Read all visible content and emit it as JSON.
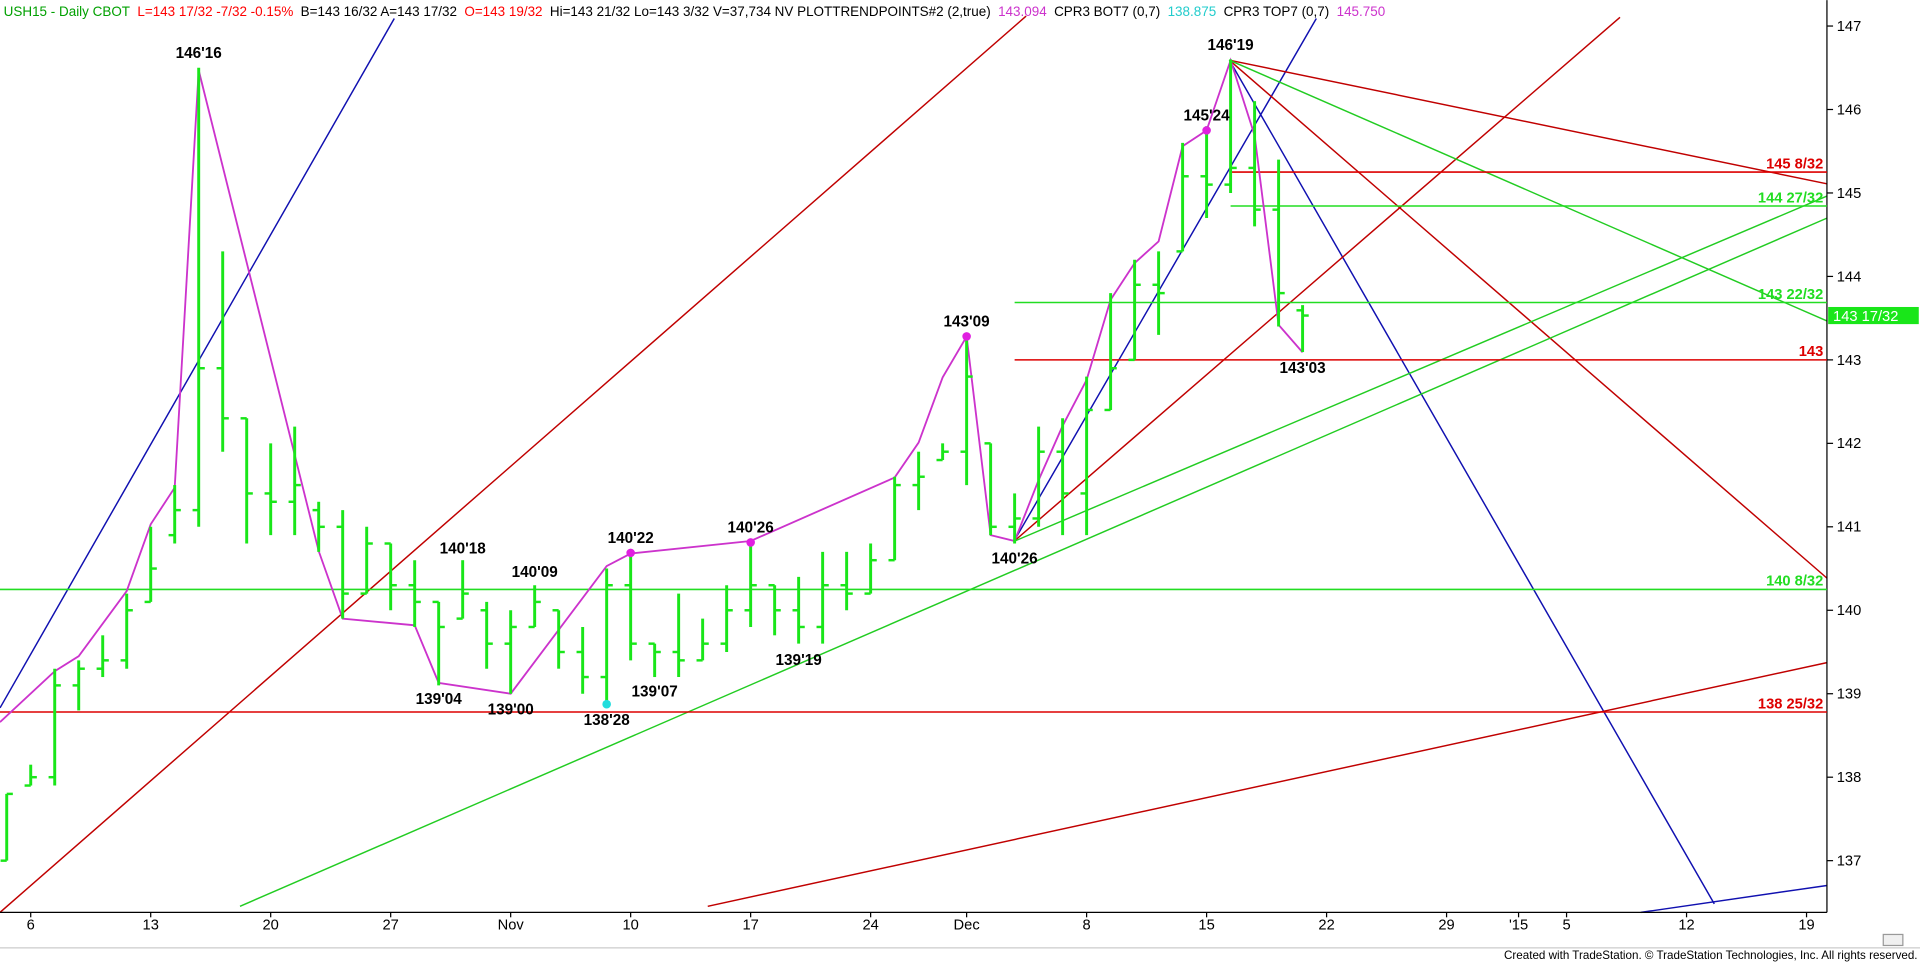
{
  "chart_data": {
    "type": "ohlc",
    "header": [
      {
        "text": "USH15 - Daily  CBOT",
        "color": "#00a000"
      },
      {
        "text": "L=143 17/32  -7/32  -0.15%",
        "color": "#ff0000"
      },
      {
        "text": "B=143 16/32  A=143 17/32",
        "color": "#000000"
      },
      {
        "text": "O=143 19/32",
        "color": "#ff0000"
      },
      {
        "text": "Hi=143 21/32  Lo=143 3/32  V=37,734  NV  PLOTTRENDPOINTS#2 (2,true)",
        "color": "#000000"
      },
      {
        "text": "143.094",
        "color": "#cc33cc"
      },
      {
        "text": "CPR3 BOT7 (0,7)",
        "color": "#000000"
      },
      {
        "text": "138.875",
        "color": "#22cccc"
      },
      {
        "text": "CPR3 TOP7 (0,7)",
        "color": "#000000"
      },
      {
        "text": "145.750",
        "color": "#cc33cc"
      }
    ],
    "footer": "Created with TradeStation. © TradeStation Technologies, Inc. All rights reserved.",
    "color": "#19e619",
    "xlim": [
      -1.28,
      74.85
    ],
    "ylim": [
      136.38,
      147.31
    ],
    "yticks": [
      137,
      138,
      139,
      140,
      141,
      142,
      143,
      144,
      145,
      146,
      147
    ],
    "xticks": [
      {
        "value": 0,
        "label": "6"
      },
      {
        "value": 5,
        "label": "13"
      },
      {
        "value": 10,
        "label": "20"
      },
      {
        "value": 15,
        "label": "27"
      },
      {
        "value": 20,
        "label": "Nov"
      },
      {
        "value": 25,
        "label": "10"
      },
      {
        "value": 30,
        "label": "17"
      },
      {
        "value": 35,
        "label": "24"
      },
      {
        "value": 39,
        "label": "Dec"
      },
      {
        "value": 44,
        "label": "8"
      },
      {
        "value": 49,
        "label": "15"
      },
      {
        "value": 54,
        "label": "22"
      },
      {
        "value": 59,
        "label": "29"
      },
      {
        "value": 62,
        "label": "'15"
      },
      {
        "value": 64,
        "label": "5"
      },
      {
        "value": 69,
        "label": "12"
      },
      {
        "value": 74,
        "label": "19"
      }
    ],
    "x": [
      -1,
      0,
      1,
      2,
      3,
      4,
      5,
      6,
      7,
      8,
      9,
      10,
      11,
      12,
      13,
      14,
      15,
      16,
      17,
      18,
      19,
      20,
      21,
      22,
      23,
      24,
      25,
      26,
      27,
      28,
      29,
      30,
      31,
      32,
      33,
      34,
      35,
      36,
      37,
      38,
      39,
      40,
      41,
      42,
      43,
      44,
      45,
      46,
      47,
      48,
      49,
      50,
      51,
      52,
      53
    ],
    "open": [
      137.0,
      137.9,
      138.0,
      139.1,
      139.3,
      139.4,
      140.1,
      140.9,
      141.2,
      142.9,
      142.3,
      141.4,
      141.3,
      141.2,
      141.0,
      140.2,
      140.8,
      140.3,
      140.1,
      139.9,
      140.0,
      139.6,
      139.8,
      140.0,
      139.5,
      139.2,
      140.3,
      139.6,
      139.5,
      139.4,
      139.6,
      140.0,
      140.3,
      140.0,
      139.8,
      140.3,
      140.2,
      140.6,
      141.5,
      141.8,
      141.9,
      142.0,
      141.0,
      141.1,
      141.9,
      141.4,
      142.4,
      143.0,
      143.9,
      144.3,
      145.2,
      145.1,
      145.3,
      144.8,
      143.59375
    ],
    "high": [
      137.8,
      138.15,
      139.3,
      139.4,
      139.7,
      140.2,
      141.0,
      141.5,
      146.5,
      144.3,
      142.3,
      142.0,
      142.2,
      141.3,
      141.2,
      141.0,
      140.8,
      140.6,
      140.1,
      140.6,
      140.1,
      140.0,
      140.3,
      140.0,
      139.8,
      140.5,
      140.7,
      139.6,
      140.2,
      139.9,
      140.3,
      140.8,
      140.3,
      140.4,
      140.7,
      140.7,
      140.8,
      141.6,
      141.9,
      142.0,
      143.3,
      142.0,
      141.4,
      142.2,
      142.3,
      142.8,
      143.8,
      144.2,
      144.3,
      145.6,
      145.8,
      146.6,
      146.1,
      145.4,
      143.65625
    ],
    "low": [
      137.0,
      137.9,
      137.9,
      138.8,
      139.2,
      139.3,
      140.1,
      140.8,
      141.0,
      141.9,
      140.8,
      140.9,
      140.9,
      140.7,
      139.9,
      140.2,
      140.0,
      139.8,
      139.1,
      139.9,
      139.3,
      139.0,
      139.8,
      139.3,
      139.0,
      138.9,
      139.4,
      139.2,
      139.2,
      139.4,
      139.5,
      139.8,
      139.7,
      139.6,
      139.6,
      140.0,
      140.2,
      140.6,
      141.2,
      141.8,
      141.5,
      140.9,
      140.8,
      141.0,
      140.9,
      140.9,
      142.4,
      143.0,
      143.3,
      144.3,
      144.7,
      145.0,
      144.6,
      143.4,
      143.09375
    ],
    "close": [
      137.8,
      138.0,
      139.1,
      139.3,
      139.4,
      140.0,
      140.5,
      141.2,
      142.9,
      142.3,
      141.4,
      141.3,
      141.5,
      141.0,
      140.2,
      140.8,
      140.3,
      140.1,
      139.8,
      140.2,
      139.6,
      139.8,
      140.1,
      139.5,
      139.2,
      140.3,
      139.6,
      139.5,
      139.4,
      139.6,
      140.0,
      140.3,
      140.0,
      139.8,
      140.3,
      140.2,
      140.6,
      141.5,
      141.6,
      141.9,
      142.8,
      141.0,
      141.1,
      141.9,
      141.4,
      142.4,
      142.9,
      143.9,
      143.8,
      145.2,
      145.1,
      145.3,
      144.8,
      143.8,
      143.53125
    ],
    "zigzag": {
      "color": "#cc33cc",
      "x": [
        -1.28,
        1,
        2,
        4,
        5,
        6,
        7,
        12,
        13,
        16,
        17,
        20,
        24,
        25,
        30,
        36,
        37,
        38,
        39,
        40,
        41,
        42,
        43,
        44,
        45,
        46,
        47,
        48,
        49,
        50,
        51,
        52,
        53
      ],
      "y": [
        138.66,
        139.27,
        139.45,
        140.23,
        141.03,
        141.47,
        146.47,
        140.71,
        139.9,
        139.82,
        139.13,
        139.0,
        140.53,
        140.68,
        140.83,
        141.59,
        142.01,
        142.79,
        143.28,
        140.9,
        140.83,
        141.56,
        142.21,
        142.76,
        143.72,
        144.16,
        144.42,
        145.56,
        145.75,
        146.59,
        145.69,
        143.42,
        143.09
      ]
    },
    "annotations": [
      {
        "x": 7,
        "y": 146.5,
        "label": "146'16",
        "pos": "above"
      },
      {
        "x": 18,
        "y": 140.5625,
        "label": "140'18",
        "pos": "above"
      },
      {
        "x": 21,
        "y": 140.28125,
        "label": "140'09",
        "pos": "above"
      },
      {
        "x": 25,
        "y": 140.6875,
        "label": "140'22",
        "pos": "above",
        "marker": "#e020e0"
      },
      {
        "x": 30,
        "y": 140.8125,
        "label": "140'26",
        "pos": "above",
        "marker": "#e020e0"
      },
      {
        "x": 39,
        "y": 143.28125,
        "label": "143'09",
        "pos": "above",
        "marker": "#e020e0"
      },
      {
        "x": 49,
        "y": 145.75,
        "label": "145'24",
        "pos": "above",
        "marker": "#e020e0"
      },
      {
        "x": 50,
        "y": 146.59375,
        "label": "146'19",
        "pos": "above"
      },
      {
        "x": 17,
        "y": 139.125,
        "label": "139'04",
        "pos": "below"
      },
      {
        "x": 20,
        "y": 139.0,
        "label": "139'00",
        "pos": "below"
      },
      {
        "x": 24,
        "y": 138.875,
        "label": "138'28",
        "pos": "below",
        "marker": "#22dddd"
      },
      {
        "x": 26,
        "y": 139.21875,
        "label": "139'07",
        "pos": "below"
      },
      {
        "x": 32,
        "y": 139.59375,
        "label": "139'19",
        "pos": "below"
      },
      {
        "x": 41,
        "y": 140.8125,
        "label": "140'26",
        "pos": "below"
      },
      {
        "x": 53,
        "y": 143.09375,
        "label": "143'03",
        "pos": "below"
      }
    ],
    "levels": [
      {
        "value": 145.25,
        "label": "145 8/32",
        "color": "#dd0000",
        "x0": 50
      },
      {
        "value": 144.84375,
        "label": "144 27/32",
        "color": "#22dd22",
        "x0": 50
      },
      {
        "value": 143.6875,
        "label": "143 22/32",
        "color": "#22dd22",
        "x0": 41
      },
      {
        "value": 143,
        "label": "143",
        "color": "#dd0000",
        "x0": 41
      },
      {
        "value": 140.25,
        "label": "140 8/32",
        "color": "#22dd22",
        "x0": -1.28
      },
      {
        "value": 138.78125,
        "label": "138 25/32",
        "color": "#dd0000",
        "x0": -1.28
      }
    ],
    "last": {
      "value": 143.53125,
      "label": "143 17/32",
      "color": "#19e619"
    }
  }
}
